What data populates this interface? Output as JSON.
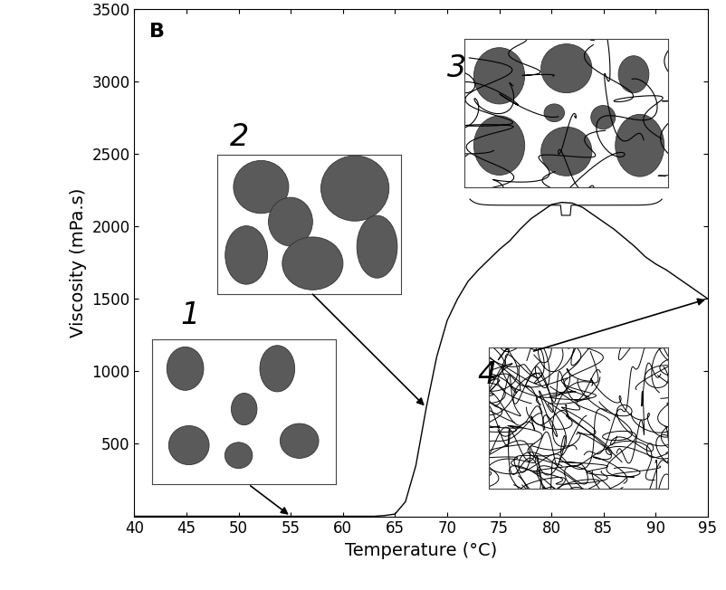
{
  "chart_data": {
    "type": "line",
    "xlabel": "Temperature (°C)",
    "ylabel": "Viscosity (mPa.s)",
    "x": [
      40,
      45,
      50,
      55,
      60,
      63,
      64,
      65,
      66,
      67,
      68,
      69,
      70,
      71,
      72,
      73,
      74,
      75,
      76,
      77,
      78,
      79,
      80,
      81,
      82,
      83,
      84,
      85,
      86,
      87,
      88,
      89,
      90,
      91,
      92,
      93,
      94,
      95
    ],
    "values": [
      0,
      0,
      0,
      0,
      0,
      0,
      5,
      15,
      100,
      350,
      750,
      1100,
      1350,
      1500,
      1620,
      1700,
      1770,
      1840,
      1900,
      1980,
      2050,
      2100,
      2150,
      2165,
      2160,
      2130,
      2080,
      2030,
      1980,
      1920,
      1860,
      1790,
      1740,
      1700,
      1650,
      1600,
      1550,
      1500
    ],
    "color": "#000000",
    "xlim": [
      40,
      95
    ],
    "ylim": [
      0,
      3500
    ],
    "xticks": [
      40,
      45,
      50,
      55,
      60,
      65,
      70,
      75,
      80,
      85,
      90,
      95
    ],
    "yticks": [
      500,
      1000,
      1500,
      2000,
      2500,
      3000,
      3500
    ],
    "annotations": [
      "B",
      "1",
      "2",
      "3",
      "4"
    ]
  }
}
